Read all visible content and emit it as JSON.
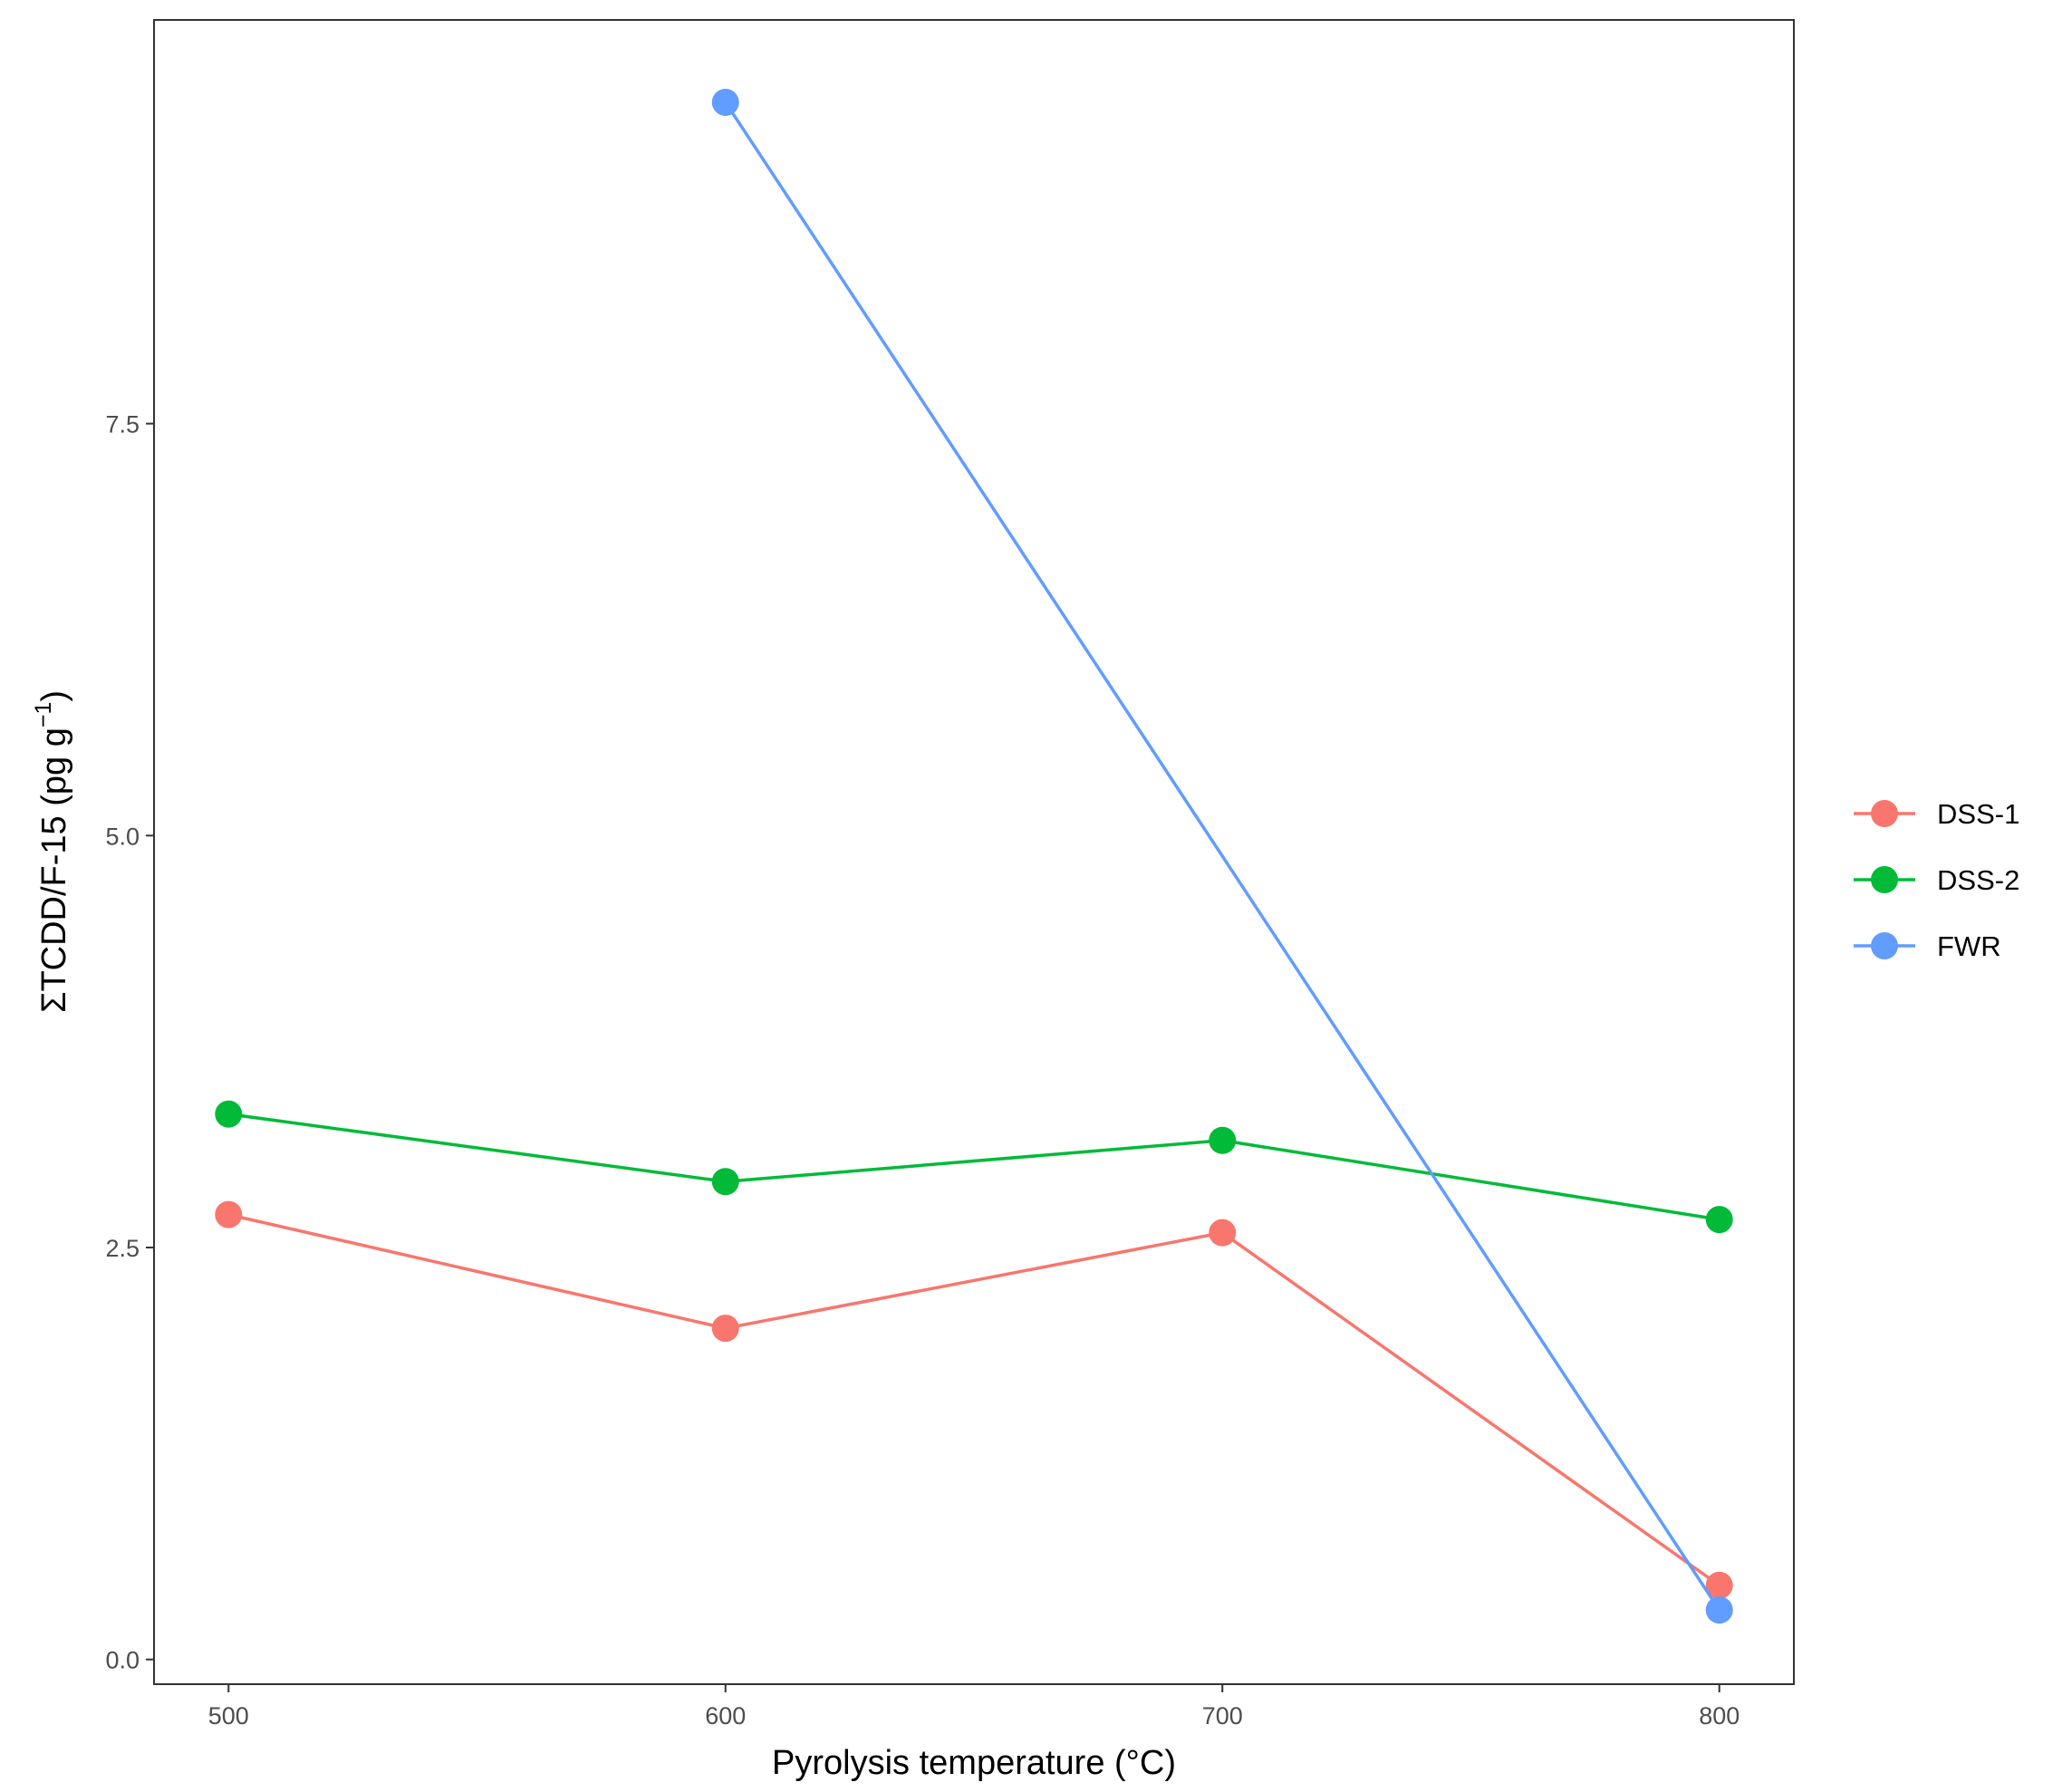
{
  "chart_data": {
    "type": "line",
    "x": [
      500,
      600,
      700,
      800
    ],
    "series": [
      {
        "name": "DSS-1",
        "color": "#F8766D",
        "values": [
          2.7,
          2.01,
          2.59,
          0.45
        ]
      },
      {
        "name": "DSS-2",
        "color": "#00BA38",
        "values": [
          3.31,
          2.9,
          3.15,
          2.67
        ]
      },
      {
        "name": "FWR",
        "color": "#619CFF",
        "values": [
          null,
          9.45,
          null,
          0.3
        ]
      }
    ],
    "xlabel": "Pyrolysis temperature (°C)",
    "ylabel": {
      "main": "ΣTCDD/F-15 (pg g",
      "superscript": "−1",
      "close": ")"
    },
    "x_ticks": [
      "500",
      "600",
      "700",
      "800"
    ],
    "y_ticks": [
      "0.0",
      "2.5",
      "5.0",
      "7.5"
    ],
    "y_tick_values": [
      0,
      2.5,
      5,
      7.5
    ],
    "xlim": [
      485,
      815
    ],
    "ylim": [
      -0.15,
      9.95
    ],
    "grid": false,
    "legend_position": "right"
  }
}
